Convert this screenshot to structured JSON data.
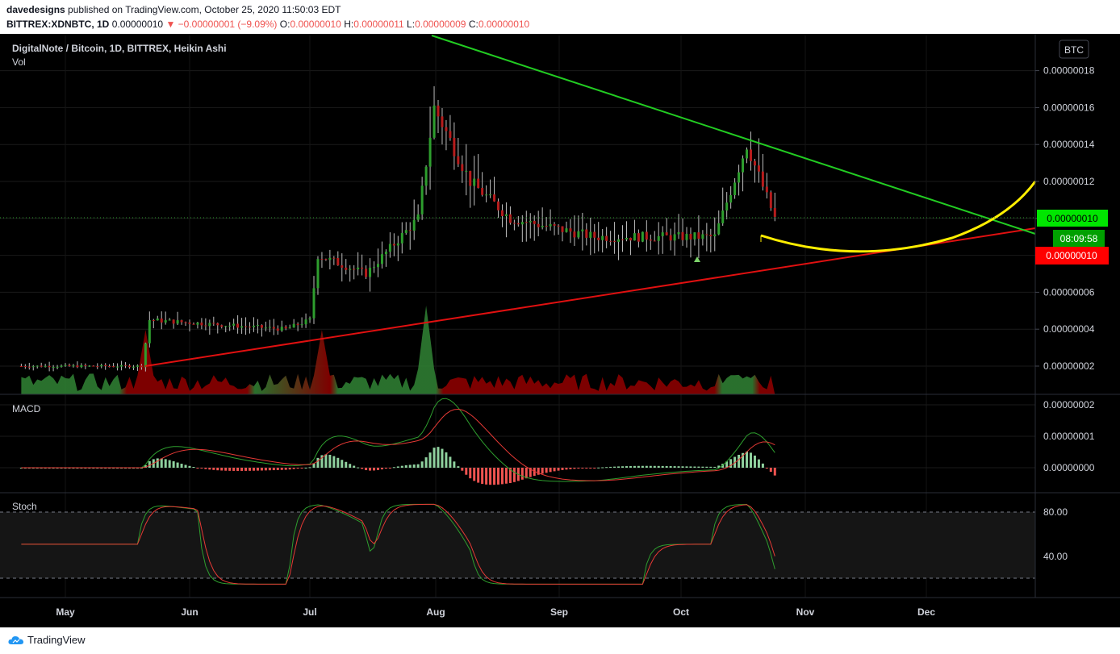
{
  "header": {
    "publisher": "davedesigns",
    "published_text": "published on TradingView.com, October 25, 2020 11:50:03 EDT",
    "symbol": "BITTREX:XDNBTC, 1D",
    "last": "0.00000010",
    "change": "▼ −0.00000001 (−9.09%)",
    "o_label": "O:",
    "o": "0.00000010",
    "h_label": "H:",
    "h": "0.00000011",
    "l_label": "L:",
    "l": "0.00000009",
    "c_label": "C:",
    "c": "0.00000010"
  },
  "legend": {
    "title": "DigitalNote / Bitcoin, 1D, BITTREX, Heikin Ashi",
    "vol": "Vol",
    "macd": "MACD",
    "stoch": "Stoch"
  },
  "currency_badge": "BTC",
  "price_labels": {
    "last_price": "0.00000010",
    "countdown": "08:09:58",
    "red_line_price": "0.00000010"
  },
  "footer": {
    "brand": "TradingView"
  },
  "colors": {
    "up": "#26a69a",
    "up_candle": "#2e9e2e",
    "down_candle": "#b71c1c",
    "green_trend": "#22cc22",
    "red_trend": "#e01010",
    "yellow_curve": "#ffee00",
    "badge_green": "#00e600",
    "badge_red": "#ff0000"
  },
  "chart_data": [
    {
      "type": "candlestick",
      "title": "DigitalNote / Bitcoin, 1D, BITTREX, Heikin Ashi",
      "y_ticks": [
        "0.00000002",
        "0.00000004",
        "0.00000006",
        "0.00000008",
        "0.00000010",
        "0.00000012",
        "0.00000014",
        "0.00000016",
        "0.00000018"
      ],
      "x_ticks": [
        "May",
        "Jun",
        "Jul",
        "Aug",
        "Sep",
        "Oct",
        "Nov",
        "Dec"
      ],
      "ylim": [
        4.5e-09,
        1.97e-08
      ],
      "approx_close_series": [
        {
          "date": "2020-04-20",
          "close": 2e-08
        },
        {
          "date": "2020-05-20",
          "close": 2e-08
        },
        {
          "date": "2020-05-22",
          "close": 4.5e-08
        },
        {
          "date": "2020-06-25",
          "close": 4e-08
        },
        {
          "date": "2020-07-01",
          "close": 4.5e-08
        },
        {
          "date": "2020-07-03",
          "close": 8e-08
        },
        {
          "date": "2020-07-15",
          "close": 7e-08
        },
        {
          "date": "2020-07-28",
          "close": 1e-07
        },
        {
          "date": "2020-08-01",
          "close": 1.6e-07
        },
        {
          "date": "2020-08-10",
          "close": 1.2e-07
        },
        {
          "date": "2020-08-20",
          "close": 1e-07
        },
        {
          "date": "2020-09-10",
          "close": 9e-08
        },
        {
          "date": "2020-10-10",
          "close": 9e-08
        },
        {
          "date": "2020-10-18",
          "close": 1.4e-07
        },
        {
          "date": "2020-10-25",
          "close": 1e-07
        }
      ],
      "volume_peaks": [
        {
          "date": "2020-05-21",
          "level": "high"
        },
        {
          "date": "2020-07-04",
          "level": "high"
        },
        {
          "date": "2020-07-30",
          "level": "very_high"
        }
      ]
    },
    {
      "type": "line",
      "title": "MACD",
      "y_ticks": [
        "0.00000000",
        "0.00000001",
        "0.00000002"
      ],
      "ylim": [
        -7e-09,
        2.1e-08
      ]
    },
    {
      "type": "line",
      "title": "Stoch",
      "y_ticks": [
        "40.00",
        "80.00"
      ],
      "band_levels": [
        20,
        80
      ],
      "ylim": [
        12,
        90
      ]
    }
  ]
}
